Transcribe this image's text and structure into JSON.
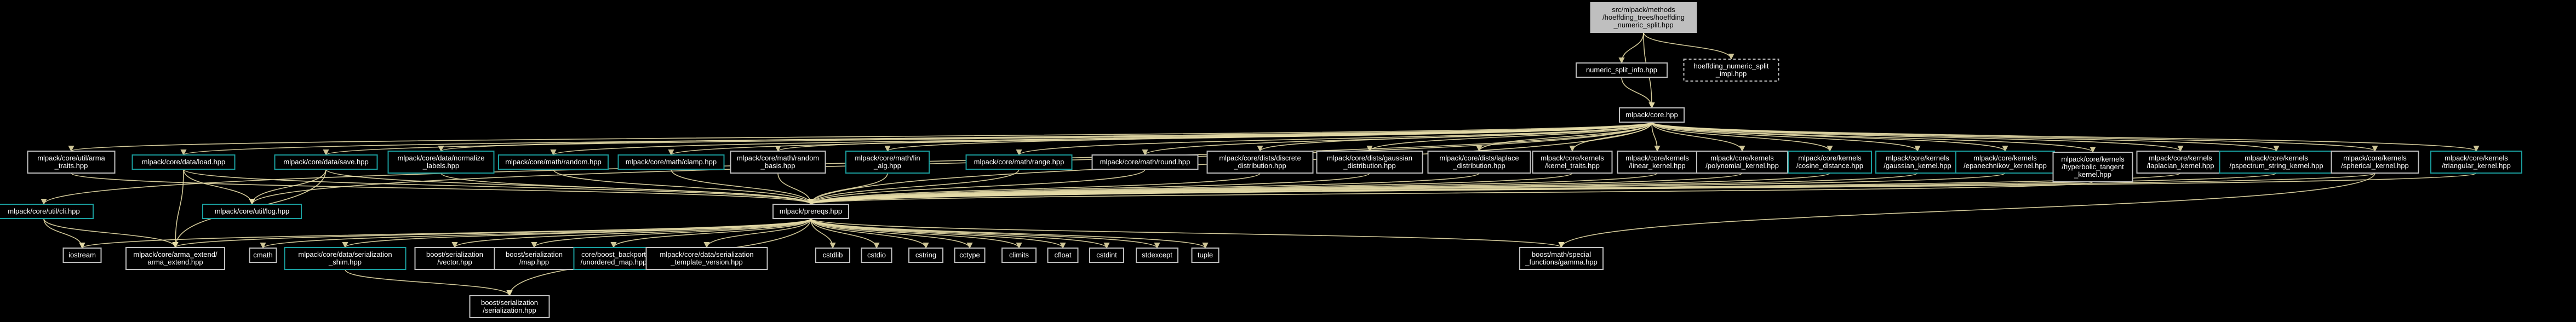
{
  "diagram": {
    "background": "#000000",
    "colors": {
      "edge": "#e6dca8",
      "node_border": "#bfbfbf",
      "linked_border": "#1a9e9e",
      "root_fill": "#bfbfbf",
      "text": "#ffffff"
    },
    "nodes": [
      {
        "id": "root",
        "style": "root",
        "label": [
          "src/mlpack/methods",
          "/hoeffding_trees/hoeffding",
          "_numeric_split.hpp"
        ]
      },
      {
        "id": "nsi",
        "style": "plain",
        "label": [
          "numeric_split_info.hpp"
        ]
      },
      {
        "id": "hnsi",
        "style": "dashed",
        "label": [
          "hoeffding_numeric_split",
          "_impl.hpp"
        ]
      },
      {
        "id": "core",
        "style": "plain",
        "label": [
          "mlpack/core.hpp"
        ]
      },
      {
        "id": "arma_traits",
        "style": "plain",
        "label": [
          "mlpack/core/util/arma",
          "_traits.hpp"
        ]
      },
      {
        "id": "load",
        "style": "linked",
        "label": [
          "mlpack/core/data/load.hpp"
        ]
      },
      {
        "id": "save",
        "style": "linked",
        "label": [
          "mlpack/core/data/save.hpp"
        ]
      },
      {
        "id": "normalize",
        "style": "linked",
        "label": [
          "mlpack/core/data/normalize",
          "_labels.hpp"
        ]
      },
      {
        "id": "random",
        "style": "linked",
        "label": [
          "mlpack/core/math/random.hpp"
        ]
      },
      {
        "id": "clamp",
        "style": "linked",
        "label": [
          "mlpack/core/math/clamp.hpp"
        ]
      },
      {
        "id": "rand_basis",
        "style": "plain",
        "label": [
          "mlpack/core/math/random",
          "_basis.hpp"
        ]
      },
      {
        "id": "lin_alg",
        "style": "linked",
        "label": [
          "mlpack/core/math/lin",
          "_alg.hpp"
        ]
      },
      {
        "id": "range",
        "style": "linked",
        "label": [
          "mlpack/core/math/range.hpp"
        ]
      },
      {
        "id": "round",
        "style": "plain",
        "label": [
          "mlpack/core/math/round.hpp"
        ]
      },
      {
        "id": "discrete",
        "style": "plain",
        "label": [
          "mlpack/core/dists/discrete",
          "_distribution.hpp"
        ]
      },
      {
        "id": "gaussian_d",
        "style": "plain",
        "label": [
          "mlpack/core/dists/gaussian",
          "_distribution.hpp"
        ]
      },
      {
        "id": "laplace_d",
        "style": "plain",
        "label": [
          "mlpack/core/dists/laplace",
          "_distribution.hpp"
        ]
      },
      {
        "id": "kernel_traits",
        "style": "plain",
        "label": [
          "mlpack/core/kernels",
          "/kernel_traits.hpp"
        ]
      },
      {
        "id": "linear_k",
        "style": "plain",
        "label": [
          "mlpack/core/kernels",
          "/linear_kernel.hpp"
        ]
      },
      {
        "id": "poly_k",
        "style": "plain",
        "label": [
          "mlpack/core/kernels",
          "/polynomial_kernel.hpp"
        ]
      },
      {
        "id": "cosine_k",
        "style": "linked",
        "label": [
          "mlpack/core/kernels",
          "/cosine_distance.hpp"
        ]
      },
      {
        "id": "gauss_k",
        "style": "linked",
        "label": [
          "mlpack/core/kernels",
          "/gaussian_kernel.hpp"
        ]
      },
      {
        "id": "epan_k",
        "style": "linked",
        "label": [
          "mlpack/core/kernels",
          "/epanechnikov_kernel.hpp"
        ]
      },
      {
        "id": "hyper_k",
        "style": "plain",
        "label": [
          "mlpack/core/kernels",
          "/hyperbolic_tangent",
          "_kernel.hpp"
        ]
      },
      {
        "id": "laplace_k",
        "style": "plain",
        "label": [
          "mlpack/core/kernels",
          "/laplacian_kernel.hpp"
        ]
      },
      {
        "id": "pspec_k",
        "style": "linked",
        "label": [
          "mlpack/core/kernels",
          "/pspectrum_string_kernel.hpp"
        ]
      },
      {
        "id": "sph_k",
        "style": "plain",
        "label": [
          "mlpack/core/kernels",
          "/spherical_kernel.hpp"
        ]
      },
      {
        "id": "tri_k",
        "style": "linked",
        "label": [
          "mlpack/core/kernels",
          "/triangular_kernel.hpp"
        ]
      },
      {
        "id": "cli",
        "style": "linked",
        "label": [
          "mlpack/core/util/cli.hpp"
        ]
      },
      {
        "id": "log",
        "style": "linked",
        "label": [
          "mlpack/core/util/log.hpp"
        ]
      },
      {
        "id": "prereqs",
        "style": "plain",
        "label": [
          "mlpack/prereqs.hpp"
        ]
      },
      {
        "id": "iostream",
        "style": "plain",
        "label": [
          "iostream"
        ]
      },
      {
        "id": "arma_ext",
        "style": "plain",
        "label": [
          "mlpack/core/arma_extend/",
          "arma_extend.hpp"
        ]
      },
      {
        "id": "cmath",
        "style": "plain",
        "label": [
          "cmath"
        ]
      },
      {
        "id": "ser_shim",
        "style": "linked",
        "label": [
          "mlpack/core/data/serialization",
          "_shim.hpp"
        ]
      },
      {
        "id": "ser_vector",
        "style": "plain",
        "label": [
          "boost/serialization",
          "/vector.hpp"
        ]
      },
      {
        "id": "ser_map",
        "style": "plain",
        "label": [
          "boost/serialization",
          "/map.hpp"
        ]
      },
      {
        "id": "unordered_map",
        "style": "linked",
        "label": [
          "core/boost_backport",
          "/unordered_map.hpp"
        ]
      },
      {
        "id": "tmpl_version",
        "style": "plain",
        "label": [
          "mlpack/core/data/serialization",
          "_template_version.hpp"
        ]
      },
      {
        "id": "cstdlib",
        "style": "plain",
        "label": [
          "cstdlib"
        ]
      },
      {
        "id": "cstdio",
        "style": "plain",
        "label": [
          "cstdio"
        ]
      },
      {
        "id": "cstring",
        "style": "plain",
        "label": [
          "cstring"
        ]
      },
      {
        "id": "cctype",
        "style": "plain",
        "label": [
          "cctype"
        ]
      },
      {
        "id": "climits",
        "style": "plain",
        "label": [
          "climits"
        ]
      },
      {
        "id": "cfloat",
        "style": "plain",
        "label": [
          "cfloat"
        ]
      },
      {
        "id": "cstdint",
        "style": "plain",
        "label": [
          "cstdint"
        ]
      },
      {
        "id": "stdexcept",
        "style": "plain",
        "label": [
          "stdexcept"
        ]
      },
      {
        "id": "tuple",
        "style": "plain",
        "label": [
          "tuple"
        ]
      },
      {
        "id": "gamma",
        "style": "plain",
        "label": [
          "boost/math/special",
          "_functions/gamma.hpp"
        ]
      },
      {
        "id": "ser_ser",
        "style": "plain",
        "label": [
          "boost/serialization",
          "/serialization.hpp"
        ]
      }
    ],
    "edges": [
      [
        "root",
        "nsi"
      ],
      [
        "root",
        "hnsi"
      ],
      [
        "root",
        "core"
      ],
      [
        "nsi",
        "core"
      ],
      [
        "core",
        "arma_traits"
      ],
      [
        "core",
        "load"
      ],
      [
        "core",
        "save"
      ],
      [
        "core",
        "normalize"
      ],
      [
        "core",
        "random"
      ],
      [
        "core",
        "clamp"
      ],
      [
        "core",
        "rand_basis"
      ],
      [
        "core",
        "lin_alg"
      ],
      [
        "core",
        "range"
      ],
      [
        "core",
        "round"
      ],
      [
        "core",
        "discrete"
      ],
      [
        "core",
        "gaussian_d"
      ],
      [
        "core",
        "laplace_d"
      ],
      [
        "core",
        "kernel_traits"
      ],
      [
        "core",
        "linear_k"
      ],
      [
        "core",
        "poly_k"
      ],
      [
        "core",
        "cosine_k"
      ],
      [
        "core",
        "gauss_k"
      ],
      [
        "core",
        "epan_k"
      ],
      [
        "core",
        "hyper_k"
      ],
      [
        "core",
        "laplace_k"
      ],
      [
        "core",
        "pspec_k"
      ],
      [
        "core",
        "sph_k"
      ],
      [
        "core",
        "tri_k"
      ],
      [
        "core",
        "cli"
      ],
      [
        "core",
        "log"
      ],
      [
        "core",
        "prereqs"
      ],
      [
        "load",
        "log"
      ],
      [
        "load",
        "prereqs"
      ],
      [
        "save",
        "log"
      ],
      [
        "save",
        "prereqs"
      ],
      [
        "arma_traits",
        "prereqs"
      ],
      [
        "normalize",
        "prereqs"
      ],
      [
        "random",
        "prereqs"
      ],
      [
        "clamp",
        "prereqs"
      ],
      [
        "rand_basis",
        "prereqs"
      ],
      [
        "lin_alg",
        "prereqs"
      ],
      [
        "range",
        "prereqs"
      ],
      [
        "round",
        "prereqs"
      ],
      [
        "discrete",
        "prereqs"
      ],
      [
        "gaussian_d",
        "prereqs"
      ],
      [
        "laplace_d",
        "prereqs"
      ],
      [
        "kernel_traits",
        "prereqs"
      ],
      [
        "linear_k",
        "prereqs"
      ],
      [
        "poly_k",
        "prereqs"
      ],
      [
        "cosine_k",
        "prereqs"
      ],
      [
        "gauss_k",
        "prereqs"
      ],
      [
        "epan_k",
        "prereqs"
      ],
      [
        "hyper_k",
        "prereqs"
      ],
      [
        "laplace_k",
        "prereqs"
      ],
      [
        "pspec_k",
        "prereqs"
      ],
      [
        "sph_k",
        "prereqs"
      ],
      [
        "tri_k",
        "prereqs"
      ],
      [
        "cli",
        "iostream"
      ],
      [
        "cli",
        "arma_ext"
      ],
      [
        "load",
        "arma_ext"
      ],
      [
        "save",
        "arma_ext"
      ],
      [
        "sph_k",
        "gamma"
      ],
      [
        "prereqs",
        "iostream"
      ],
      [
        "prereqs",
        "arma_ext"
      ],
      [
        "prereqs",
        "cmath"
      ],
      [
        "prereqs",
        "ser_shim"
      ],
      [
        "prereqs",
        "ser_vector"
      ],
      [
        "prereqs",
        "ser_map"
      ],
      [
        "prereqs",
        "unordered_map"
      ],
      [
        "prereqs",
        "tmpl_version"
      ],
      [
        "prereqs",
        "cstdlib"
      ],
      [
        "prereqs",
        "cstdio"
      ],
      [
        "prereqs",
        "cstring"
      ],
      [
        "prereqs",
        "cctype"
      ],
      [
        "prereqs",
        "climits"
      ],
      [
        "prereqs",
        "cfloat"
      ],
      [
        "prereqs",
        "cstdint"
      ],
      [
        "prereqs",
        "stdexcept"
      ],
      [
        "prereqs",
        "tuple"
      ],
      [
        "prereqs",
        "gamma"
      ],
      [
        "prereqs",
        "ser_ser"
      ],
      [
        "ser_shim",
        "ser_ser"
      ]
    ]
  }
}
